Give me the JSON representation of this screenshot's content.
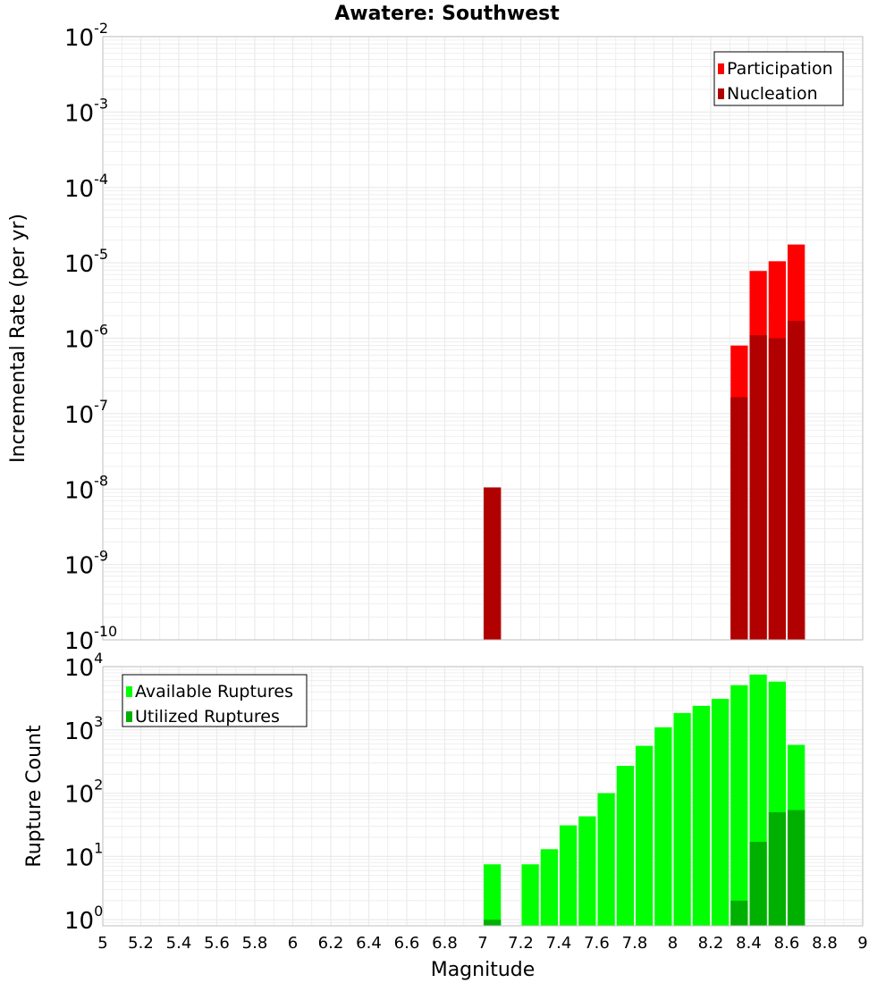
{
  "title": "Awatere: Southwest",
  "x_axis": {
    "label": "Magnitude",
    "range": [
      5,
      9
    ],
    "tick_labels": [
      "5",
      "5.2",
      "5.4",
      "5.6",
      "5.8",
      "6",
      "6.2",
      "6.4",
      "6.6",
      "6.8",
      "7",
      "7.2",
      "7.4",
      "7.6",
      "7.8",
      "8",
      "8.2",
      "8.4",
      "8.6",
      "8.8",
      "9"
    ]
  },
  "colors": {
    "participation": "#ff0000",
    "nucleation": "#b00000",
    "available": "#00ff00",
    "utilized": "#00b000",
    "grid": "#ebebeb",
    "frame": "#c0c0c0"
  },
  "chart_data": [
    {
      "type": "bar",
      "title": "Awatere: Southwest",
      "xlabel": "Magnitude",
      "ylabel": "Incremental Rate (per yr)",
      "yscale": "log",
      "xlim": [
        5,
        9
      ],
      "ylim": [
        1e-10,
        0.01
      ],
      "y_tick_exponents": [
        "-10",
        "-9",
        "-8",
        "-7",
        "-6",
        "-5",
        "-4",
        "-3",
        "-2"
      ],
      "grid": true,
      "legend_position": "top-right",
      "bin_width": 0.1,
      "x": [
        7.05,
        8.35,
        8.45,
        8.55,
        8.65
      ],
      "series": [
        {
          "name": "Participation",
          "values": [
            1.05e-08,
            8e-07,
            7.8e-06,
            1.05e-05,
            1.75e-05
          ]
        },
        {
          "name": "Nucleation",
          "values": [
            1.05e-08,
            1.65e-07,
            1.1e-06,
            1e-06,
            1.7e-06
          ]
        }
      ]
    },
    {
      "type": "bar",
      "xlabel": "Magnitude",
      "ylabel": "Rupture Count",
      "yscale": "log",
      "xlim": [
        5,
        9
      ],
      "ylim": [
        0.8,
        10000
      ],
      "y_tick_exponents": [
        "0",
        "1",
        "2",
        "3",
        "4"
      ],
      "grid": true,
      "legend_position": "top-left",
      "bin_width": 0.1,
      "x": [
        7.05,
        7.25,
        7.35,
        7.45,
        7.55,
        7.65,
        7.75,
        7.85,
        7.95,
        8.05,
        8.15,
        8.25,
        8.35,
        8.45,
        8.55,
        8.65
      ],
      "series": [
        {
          "name": "Available Ruptures",
          "values": [
            7.5,
            7.5,
            13,
            31,
            43,
            100,
            270,
            560,
            1100,
            1850,
            2400,
            3100,
            5100,
            7500,
            5800,
            580
          ]
        },
        {
          "name": "Utilized Ruptures",
          "values": [
            1,
            0,
            0,
            0,
            0,
            0,
            0,
            0,
            0,
            0,
            0,
            0,
            2,
            17,
            50,
            54
          ]
        }
      ]
    }
  ]
}
